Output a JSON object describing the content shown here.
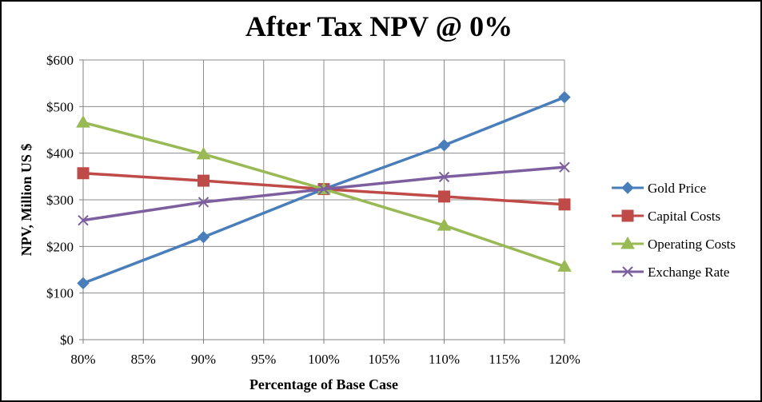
{
  "chart_data": {
    "type": "line",
    "title": "After Tax NPV @ 0%",
    "xlabel": "Percentage of Base Case",
    "ylabel": "NPV, Million  US $",
    "x": [
      80,
      90,
      100,
      110,
      120
    ],
    "xlim": [
      80,
      120
    ],
    "x_ticks": [
      80,
      85,
      90,
      95,
      100,
      105,
      110,
      115,
      120
    ],
    "x_tick_labels": [
      "80%",
      "85%",
      "90%",
      "95%",
      "100%",
      "105%",
      "110%",
      "115%",
      "120%"
    ],
    "ylim": [
      0,
      600
    ],
    "y_ticks": [
      0,
      100,
      200,
      300,
      400,
      500,
      600
    ],
    "y_tick_labels": [
      "$0",
      "$100",
      "$200",
      "$300",
      "$400",
      "$500",
      "$600"
    ],
    "grid": true,
    "legend_position": "right",
    "series": [
      {
        "name": "Gold Price",
        "values": [
          121,
          220,
          323,
          417,
          520
        ],
        "color": "#4a7ebb",
        "marker": "diamond"
      },
      {
        "name": "Capital Costs",
        "values": [
          357,
          341,
          323,
          307,
          290
        ],
        "color": "#be4b48",
        "marker": "square"
      },
      {
        "name": "Operating Costs",
        "values": [
          466,
          398,
          323,
          245,
          157
        ],
        "color": "#98b954",
        "marker": "triangle"
      },
      {
        "name": "Exchange Rate",
        "values": [
          256,
          295,
          323,
          349,
          370
        ],
        "color": "#7d5fa0",
        "marker": "x"
      }
    ]
  }
}
